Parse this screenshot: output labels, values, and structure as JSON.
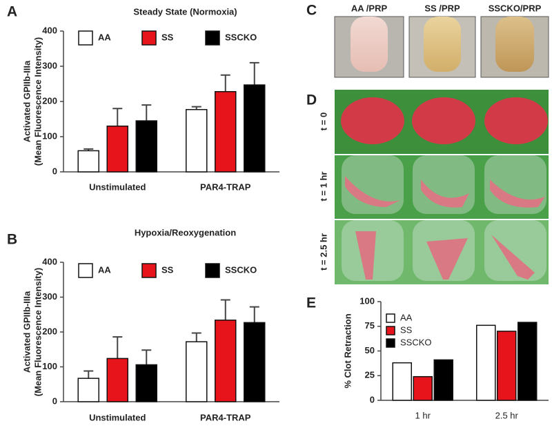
{
  "chart_data": [
    {
      "type": "bar",
      "title": "Steady State (Normoxia)",
      "ylabel": [
        "Activated GPIIb-IIIa",
        "(Mean Fluorescence Intensity)"
      ],
      "categories": [
        "Unstimulated",
        "PAR4-TRAP"
      ],
      "series": [
        {
          "name": "AA",
          "color": "#ffffff",
          "values": [
            60,
            177
          ],
          "errors": [
            5,
            8
          ]
        },
        {
          "name": "SS",
          "color": "#e8141c",
          "values": [
            130,
            228
          ],
          "errors": [
            50,
            47
          ]
        },
        {
          "name": "SSCKO",
          "color": "#000000",
          "values": [
            145,
            247
          ],
          "errors": [
            45,
            63
          ]
        }
      ],
      "ylim": [
        0,
        400
      ],
      "yticks": [
        0,
        100,
        200,
        300,
        400
      ],
      "legend": "top"
    },
    {
      "type": "bar",
      "title": "Hypoxia/Reoxygenation",
      "ylabel": [
        "Activated GPIIb-IIIa",
        "(Mean Fluorescence Intensity)"
      ],
      "categories": [
        "Unstimulated",
        "PAR4-TRAP"
      ],
      "series": [
        {
          "name": "AA",
          "color": "#ffffff",
          "values": [
            67,
            172
          ],
          "errors": [
            21,
            25
          ]
        },
        {
          "name": "SS",
          "color": "#e8141c",
          "values": [
            124,
            234
          ],
          "errors": [
            62,
            58
          ]
        },
        {
          "name": "SSCKO",
          "color": "#000000",
          "values": [
            106,
            227
          ],
          "errors": [
            42,
            45
          ]
        }
      ],
      "ylim": [
        0,
        400
      ],
      "yticks": [
        0,
        100,
        200,
        300,
        400
      ],
      "legend": "top"
    },
    {
      "type": "bar",
      "ylabel": [
        "% Clot Retraction"
      ],
      "categories": [
        "1 hr",
        "2.5 hr"
      ],
      "series": [
        {
          "name": "AA",
          "color": "#ffffff",
          "values": [
            38,
            76
          ]
        },
        {
          "name": "SS",
          "color": "#e8141c",
          "values": [
            24,
            70
          ]
        },
        {
          "name": "SSCKO",
          "color": "#000000",
          "values": [
            41,
            79
          ]
        }
      ],
      "ylim": [
        0,
        100
      ],
      "yticks": [
        0,
        25,
        50,
        75,
        100
      ],
      "legend": "top-left"
    }
  ],
  "panels": [
    "A",
    "B",
    "C",
    "D",
    "E"
  ],
  "photos": {
    "c_labels": [
      "AA /PRP",
      "SS /PRP",
      "SSCKO/PRP"
    ],
    "d_labels": [
      "t = 0",
      "t = 1 hr",
      "t = 2.5 hr"
    ]
  }
}
